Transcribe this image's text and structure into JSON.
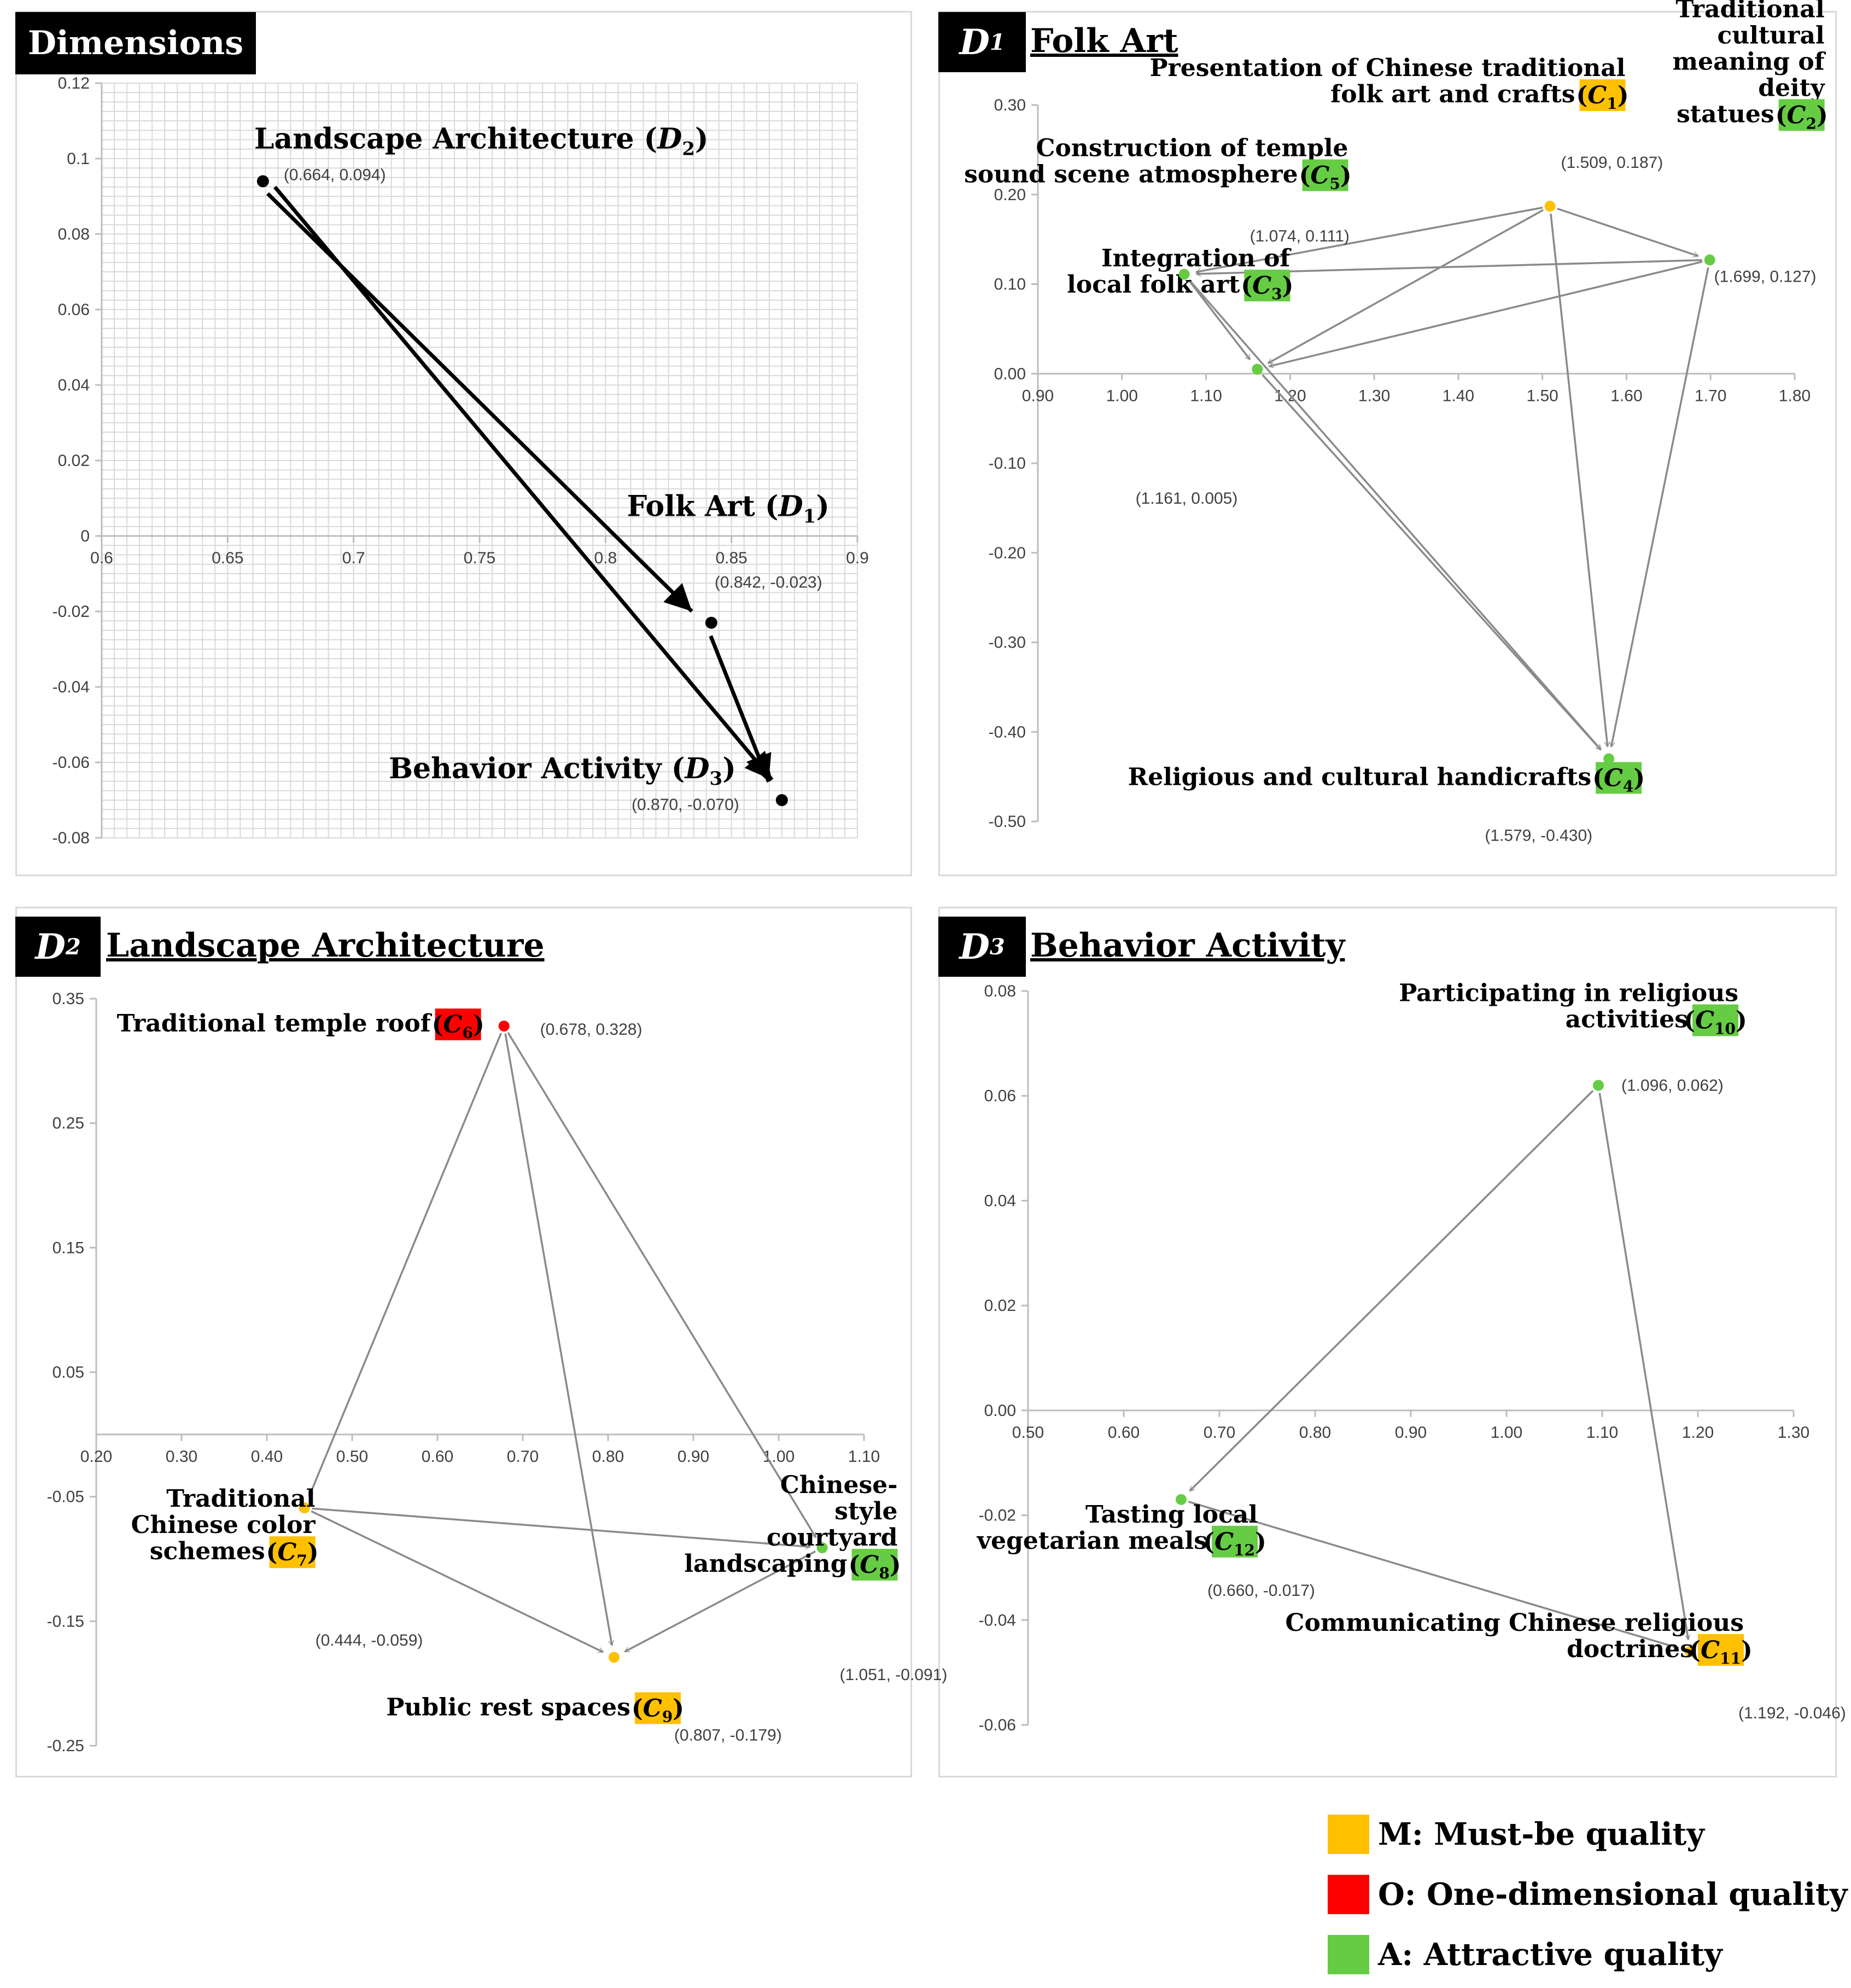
{
  "legend": [
    {
      "code": "M",
      "label": "M: Must-be quality",
      "color": "#FFC000"
    },
    {
      "code": "O",
      "label": "O: One-dimensional quality",
      "color": "#FF0000"
    },
    {
      "code": "A",
      "label": "A: Attractive quality",
      "color": "#66CC44"
    }
  ],
  "chart_data": [
    {
      "id": "dimensions",
      "type": "scatter",
      "title": "Dimensions",
      "grid": true,
      "xlim": [
        0.6,
        0.9
      ],
      "ylim": [
        -0.08,
        0.12
      ],
      "x_ticks": [
        "0.6",
        "0.65",
        "0.7",
        "0.75",
        "0.8",
        "0.85",
        "0.9"
      ],
      "y_ticks": [
        "0.12",
        "0.1",
        "0.08",
        "0.06",
        "0.04",
        "0.02",
        "0",
        "-0.02",
        "-0.04",
        "-0.06",
        "-0.08"
      ],
      "points": [
        {
          "id": "D2",
          "name": "Landscape Architecture",
          "sub": "2",
          "x": 0.664,
          "y": 0.094,
          "coord": "(0.664, 0.094)",
          "color": "#000000"
        },
        {
          "id": "D1",
          "name": "Folk Art",
          "sub": "1",
          "x": 0.842,
          "y": -0.023,
          "coord": "(0.842, -0.023)",
          "color": "#000000"
        },
        {
          "id": "D3",
          "name": "Behavior Activity",
          "sub": "3",
          "x": 0.87,
          "y": -0.07,
          "coord": "(0.870, -0.070)",
          "color": "#000000"
        }
      ],
      "arrows": [
        [
          "D2",
          "D1"
        ],
        [
          "D2",
          "D3"
        ],
        [
          "D1",
          "D3"
        ]
      ]
    },
    {
      "id": "folk-art",
      "type": "scatter",
      "tag": "D",
      "tag_sub": "1",
      "title": "Folk Art",
      "xlim": [
        0.9,
        1.8
      ],
      "ylim": [
        -0.5,
        0.3
      ],
      "x_ticks": [
        "0.90",
        "1.00",
        "1.10",
        "1.20",
        "1.30",
        "1.40",
        "1.50",
        "1.60",
        "1.70",
        "1.80"
      ],
      "y_ticks": [
        "0.30",
        "0.20",
        "0.10",
        "0.00",
        "-0.10",
        "-0.20",
        "-0.30",
        "-0.40",
        "-0.50"
      ],
      "points": [
        {
          "id": "C1",
          "label": [
            "Presentation of Chinese traditional",
            "folk art and crafts"
          ],
          "code_sub": "1",
          "x": 1.509,
          "y": 0.187,
          "coord": "(1.509, 0.187)",
          "category": "M"
        },
        {
          "id": "C2",
          "label": [
            "Traditional",
            "cultural",
            "meaning of",
            "deity",
            "statues"
          ],
          "code_sub": "2",
          "x": 1.699,
          "y": 0.127,
          "coord": "(1.699, 0.127)",
          "category": "A"
        },
        {
          "id": "C3",
          "label": [
            "Integration of",
            "local folk art"
          ],
          "code_sub": "3",
          "x": 1.161,
          "y": 0.005,
          "coord": "(1.161, 0.005)",
          "category": "A"
        },
        {
          "id": "C4",
          "label": [
            "Religious and cultural handicrafts"
          ],
          "code_sub": "4",
          "x": 1.579,
          "y": -0.43,
          "coord": "(1.579, -0.430)",
          "category": "A"
        },
        {
          "id": "C5",
          "label": [
            "Construction of temple",
            "sound scene atmosphere"
          ],
          "code_sub": "5",
          "x": 1.074,
          "y": 0.111,
          "coord": "(1.074, 0.111)",
          "category": "A"
        }
      ],
      "arrows": [
        [
          "C1",
          "C2"
        ],
        [
          "C1",
          "C5"
        ],
        [
          "C1",
          "C3"
        ],
        [
          "C1",
          "C4"
        ],
        [
          "C2",
          "C5"
        ],
        [
          "C2",
          "C3"
        ],
        [
          "C2",
          "C4"
        ],
        [
          "C5",
          "C3"
        ],
        [
          "C5",
          "C4"
        ],
        [
          "C3",
          "C4"
        ]
      ]
    },
    {
      "id": "landscape-architecture",
      "type": "scatter",
      "tag": "D",
      "tag_sub": "2",
      "title": "Landscape Architecture",
      "xlim": [
        0.2,
        1.1
      ],
      "ylim": [
        -0.25,
        0.35
      ],
      "x_ticks": [
        "0.20",
        "0.30",
        "0.40",
        "0.50",
        "0.60",
        "0.70",
        "0.80",
        "0.90",
        "1.00",
        "1.10"
      ],
      "y_ticks": [
        "0.35",
        "0.25",
        "0.15",
        "0.05",
        "-0.05",
        "-0.15",
        "-0.25"
      ],
      "points": [
        {
          "id": "C6",
          "label": [
            "Traditional temple roof"
          ],
          "code_sub": "6",
          "x": 0.678,
          "y": 0.328,
          "coord": "(0.678, 0.328)",
          "category": "O"
        },
        {
          "id": "C7",
          "label": [
            "Traditional",
            "Chinese color",
            "schemes"
          ],
          "code_sub": "7",
          "x": 0.444,
          "y": -0.059,
          "coord": "(0.444, -0.059)",
          "category": "M"
        },
        {
          "id": "C8",
          "label": [
            "Chinese-",
            "style",
            "courtyard",
            "landscaping"
          ],
          "code_sub": "8",
          "x": 1.051,
          "y": -0.091,
          "coord": "(1.051, -0.091)",
          "category": "A"
        },
        {
          "id": "C9",
          "label": [
            "Public rest spaces"
          ],
          "code_sub": "9",
          "x": 0.807,
          "y": -0.179,
          "coord": "(0.807, -0.179)",
          "category": "M"
        }
      ],
      "arrows": [
        [
          "C6",
          "C7"
        ],
        [
          "C6",
          "C9"
        ],
        [
          "C6",
          "C8"
        ],
        [
          "C7",
          "C8"
        ],
        [
          "C7",
          "C9"
        ],
        [
          "C8",
          "C9"
        ]
      ]
    },
    {
      "id": "behavior-activity",
      "type": "scatter",
      "tag": "D",
      "tag_sub": "3",
      "title": "Behavior Activity",
      "xlim": [
        0.5,
        1.3
      ],
      "ylim": [
        -0.06,
        0.08
      ],
      "x_ticks": [
        "0.50",
        "0.60",
        "0.70",
        "0.80",
        "0.90",
        "1.00",
        "1.10",
        "1.20",
        "1.30"
      ],
      "y_ticks": [
        "0.08",
        "0.06",
        "0.04",
        "0.02",
        "0.00",
        "-0.02",
        "-0.04",
        "-0.06"
      ],
      "points": [
        {
          "id": "C10",
          "label": [
            "Participating in religious",
            "activities"
          ],
          "code_sub": "10",
          "x": 1.096,
          "y": 0.062,
          "coord": "(1.096, 0.062)",
          "category": "A"
        },
        {
          "id": "C11",
          "label": [
            "Communicating Chinese religious",
            "doctrines"
          ],
          "code_sub": "11",
          "x": 1.192,
          "y": -0.046,
          "coord": "(1.192, -0.046)",
          "category": "M"
        },
        {
          "id": "C12",
          "label": [
            "Tasting local",
            "vegetarian meals"
          ],
          "code_sub": "12",
          "x": 0.66,
          "y": -0.017,
          "coord": "(0.660, -0.017)",
          "category": "A"
        }
      ],
      "arrows": [
        [
          "C10",
          "C12"
        ],
        [
          "C10",
          "C11"
        ],
        [
          "C12",
          "C11"
        ]
      ]
    }
  ]
}
